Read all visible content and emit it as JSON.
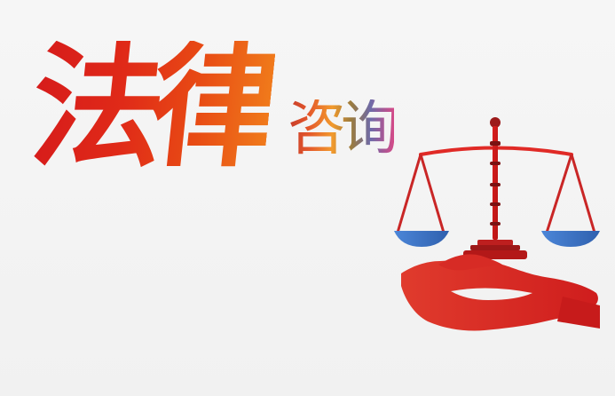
{
  "logo": {
    "title": "法律",
    "subtitle": "咨询"
  },
  "colors": {
    "primary_red": "#db2a1c",
    "scale_blue": "#4577c9",
    "background": "#f4f4f4"
  },
  "icons": {
    "scale": "scale-of-justice-icon",
    "hand": "open-hand-icon"
  }
}
